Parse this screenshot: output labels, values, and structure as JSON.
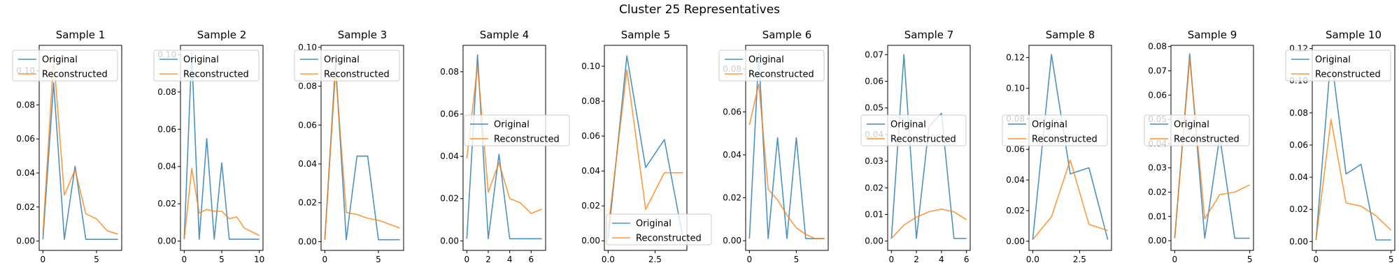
{
  "figure": {
    "title": "Cluster 25 Representatives"
  },
  "colors": {
    "original": "#1f77b4",
    "reconstructed": "#ff7f0e"
  },
  "chart_data": [
    {
      "type": "line",
      "title": "Sample 1",
      "legend": "top-left",
      "xlim": [
        -0.35,
        7.35
      ],
      "ylim": [
        -0.0055,
        0.115
      ],
      "xticks": [
        0,
        5
      ],
      "yticks": [
        0.0,
        0.02,
        0.04,
        0.06,
        0.08,
        0.1
      ],
      "x": [
        0,
        1,
        2,
        3,
        4,
        5,
        6,
        7
      ],
      "series": [
        {
          "name": "Original",
          "values": [
            0.001,
            0.093,
            0.001,
            0.044,
            0.001,
            0.001,
            0.001,
            0.001
          ]
        },
        {
          "name": "Reconstructed",
          "values": [
            0.004,
            0.108,
            0.027,
            0.042,
            0.016,
            0.013,
            0.006,
            0.004
          ]
        }
      ]
    },
    {
      "type": "line",
      "title": "Sample 2",
      "legend": "top-left",
      "xlim": [
        -0.5,
        10.5
      ],
      "ylim": [
        -0.005,
        0.105
      ],
      "xticks": [
        0,
        5,
        10
      ],
      "yticks": [
        0.0,
        0.02,
        0.04,
        0.06,
        0.08,
        0.1
      ],
      "x": [
        0,
        1,
        2,
        3,
        4,
        5,
        6,
        7,
        8,
        9,
        10
      ],
      "series": [
        {
          "name": "Original",
          "values": [
            0.001,
            0.101,
            0.001,
            0.055,
            0.001,
            0.042,
            0.001,
            0.001,
            0.001,
            0.001,
            0.001
          ]
        },
        {
          "name": "Reconstructed",
          "values": [
            0.001,
            0.039,
            0.015,
            0.017,
            0.016,
            0.016,
            0.012,
            0.013,
            0.007,
            0.005,
            0.003
          ]
        }
      ]
    },
    {
      "type": "line",
      "title": "Sample 3",
      "legend": "top-left",
      "xlim": [
        -0.35,
        7.35
      ],
      "ylim": [
        -0.0045,
        0.101
      ],
      "xticks": [
        0,
        5
      ],
      "yticks": [
        0.0,
        0.02,
        0.04,
        0.06,
        0.08,
        0.1
      ],
      "x": [
        0,
        1,
        2,
        3,
        4,
        5,
        6,
        7
      ],
      "series": [
        {
          "name": "Original",
          "values": [
            0.001,
            0.092,
            0.001,
            0.044,
            0.044,
            0.001,
            0.001,
            0.001
          ]
        },
        {
          "name": "Reconstructed",
          "values": [
            0.001,
            0.088,
            0.015,
            0.014,
            0.012,
            0.011,
            0.009,
            0.007
          ]
        }
      ]
    },
    {
      "type": "line",
      "title": "Sample 4",
      "legend": "center-right",
      "xlim": [
        -0.35,
        7.35
      ],
      "ylim": [
        -0.0045,
        0.0925
      ],
      "xticks": [
        0,
        2,
        4,
        6
      ],
      "yticks": [
        0.0,
        0.02,
        0.04,
        0.06,
        0.08
      ],
      "x": [
        0,
        1,
        2,
        3,
        4,
        5,
        6,
        7
      ],
      "series": [
        {
          "name": "Original",
          "values": [
            0.001,
            0.088,
            0.001,
            0.041,
            0.001,
            0.001,
            0.001,
            0.001
          ]
        },
        {
          "name": "Reconstructed",
          "values": [
            0.039,
            0.083,
            0.023,
            0.037,
            0.02,
            0.018,
            0.013,
            0.015
          ]
        }
      ]
    },
    {
      "type": "line",
      "title": "Sample 5",
      "legend": "bottom-right",
      "xlim": [
        -0.2,
        4.2
      ],
      "ylim": [
        -0.0055,
        0.112
      ],
      "xticks": [
        0.0,
        2.5
      ],
      "yticks": [
        0.0,
        0.02,
        0.04,
        0.06,
        0.08,
        0.1
      ],
      "x": [
        0,
        1,
        2,
        3,
        4
      ],
      "series": [
        {
          "name": "Original",
          "values": [
            0.001,
            0.106,
            0.042,
            0.058,
            0.001
          ]
        },
        {
          "name": "Reconstructed",
          "values": [
            0.007,
            0.098,
            0.018,
            0.039,
            0.039
          ]
        }
      ]
    },
    {
      "type": "line",
      "title": "Sample 6",
      "legend": "top-left",
      "xlim": [
        -0.4,
        8.4
      ],
      "ylim": [
        -0.0045,
        0.091
      ],
      "xticks": [
        0,
        5
      ],
      "yticks": [
        0.0,
        0.02,
        0.04,
        0.06,
        0.08
      ],
      "x": [
        0,
        1,
        2,
        3,
        4,
        5,
        6,
        7,
        8
      ],
      "series": [
        {
          "name": "Original",
          "values": [
            0.001,
            0.087,
            0.001,
            0.048,
            0.001,
            0.048,
            0.001,
            0.001,
            0.001
          ]
        },
        {
          "name": "Reconstructed",
          "values": [
            0.054,
            0.073,
            0.024,
            0.019,
            0.012,
            0.006,
            0.003,
            0.001,
            0.001
          ]
        }
      ]
    },
    {
      "type": "line",
      "title": "Sample 7",
      "legend": "center-left",
      "xlim": [
        -0.3,
        6.3
      ],
      "ylim": [
        -0.0035,
        0.0735
      ],
      "xticks": [
        0,
        2,
        4,
        6
      ],
      "yticks": [
        0.0,
        0.01,
        0.02,
        0.03,
        0.04,
        0.05,
        0.06,
        0.07
      ],
      "x": [
        0,
        1,
        2,
        3,
        4,
        5,
        6
      ],
      "series": [
        {
          "name": "Original",
          "values": [
            0.001,
            0.07,
            0.001,
            0.043,
            0.048,
            0.001,
            0.001
          ]
        },
        {
          "name": "Reconstructed",
          "values": [
            0.001,
            0.006,
            0.009,
            0.011,
            0.012,
            0.011,
            0.008
          ]
        }
      ]
    },
    {
      "type": "line",
      "title": "Sample 8",
      "legend": "center-left",
      "xlim": [
        -0.2,
        4.2
      ],
      "ylim": [
        -0.006,
        0.128
      ],
      "xticks": [
        0.0,
        2.5
      ],
      "yticks": [
        0.0,
        0.02,
        0.04,
        0.06,
        0.08,
        0.1,
        0.12
      ],
      "x": [
        0,
        1,
        2,
        3,
        4
      ],
      "series": [
        {
          "name": "Original",
          "values": [
            0.001,
            0.122,
            0.044,
            0.048,
            0.001
          ]
        },
        {
          "name": "Reconstructed",
          "values": [
            0.001,
            0.016,
            0.053,
            0.011,
            0.007
          ]
        }
      ]
    },
    {
      "type": "line",
      "title": "Sample 9",
      "legend": "center-left",
      "xlim": [
        -0.25,
        5.25
      ],
      "ylim": [
        -0.004,
        0.0805
      ],
      "xticks": [
        0,
        5
      ],
      "yticks": [
        0.0,
        0.01,
        0.02,
        0.03,
        0.04,
        0.05,
        0.06,
        0.07,
        0.08
      ],
      "x": [
        0,
        1,
        2,
        3,
        4,
        5
      ],
      "series": [
        {
          "name": "Original",
          "values": [
            0.001,
            0.077,
            0.001,
            0.043,
            0.001,
            0.001
          ]
        },
        {
          "name": "Reconstructed",
          "values": [
            0.001,
            0.075,
            0.009,
            0.019,
            0.02,
            0.023
          ]
        }
      ]
    },
    {
      "type": "line",
      "title": "Sample 10",
      "legend": "top-left",
      "xlim": [
        -0.25,
        5.25
      ],
      "ylim": [
        -0.0055,
        0.122
      ],
      "xticks": [
        0,
        5
      ],
      "yticks": [
        0.0,
        0.02,
        0.04,
        0.06,
        0.08,
        0.1,
        0.12
      ],
      "x": [
        0,
        1,
        2,
        3,
        4,
        5
      ],
      "series": [
        {
          "name": "Original",
          "values": [
            0.001,
            0.116,
            0.042,
            0.048,
            0.001,
            0.001
          ]
        },
        {
          "name": "Reconstructed",
          "values": [
            0.001,
            0.076,
            0.024,
            0.022,
            0.016,
            0.007
          ]
        }
      ]
    }
  ]
}
